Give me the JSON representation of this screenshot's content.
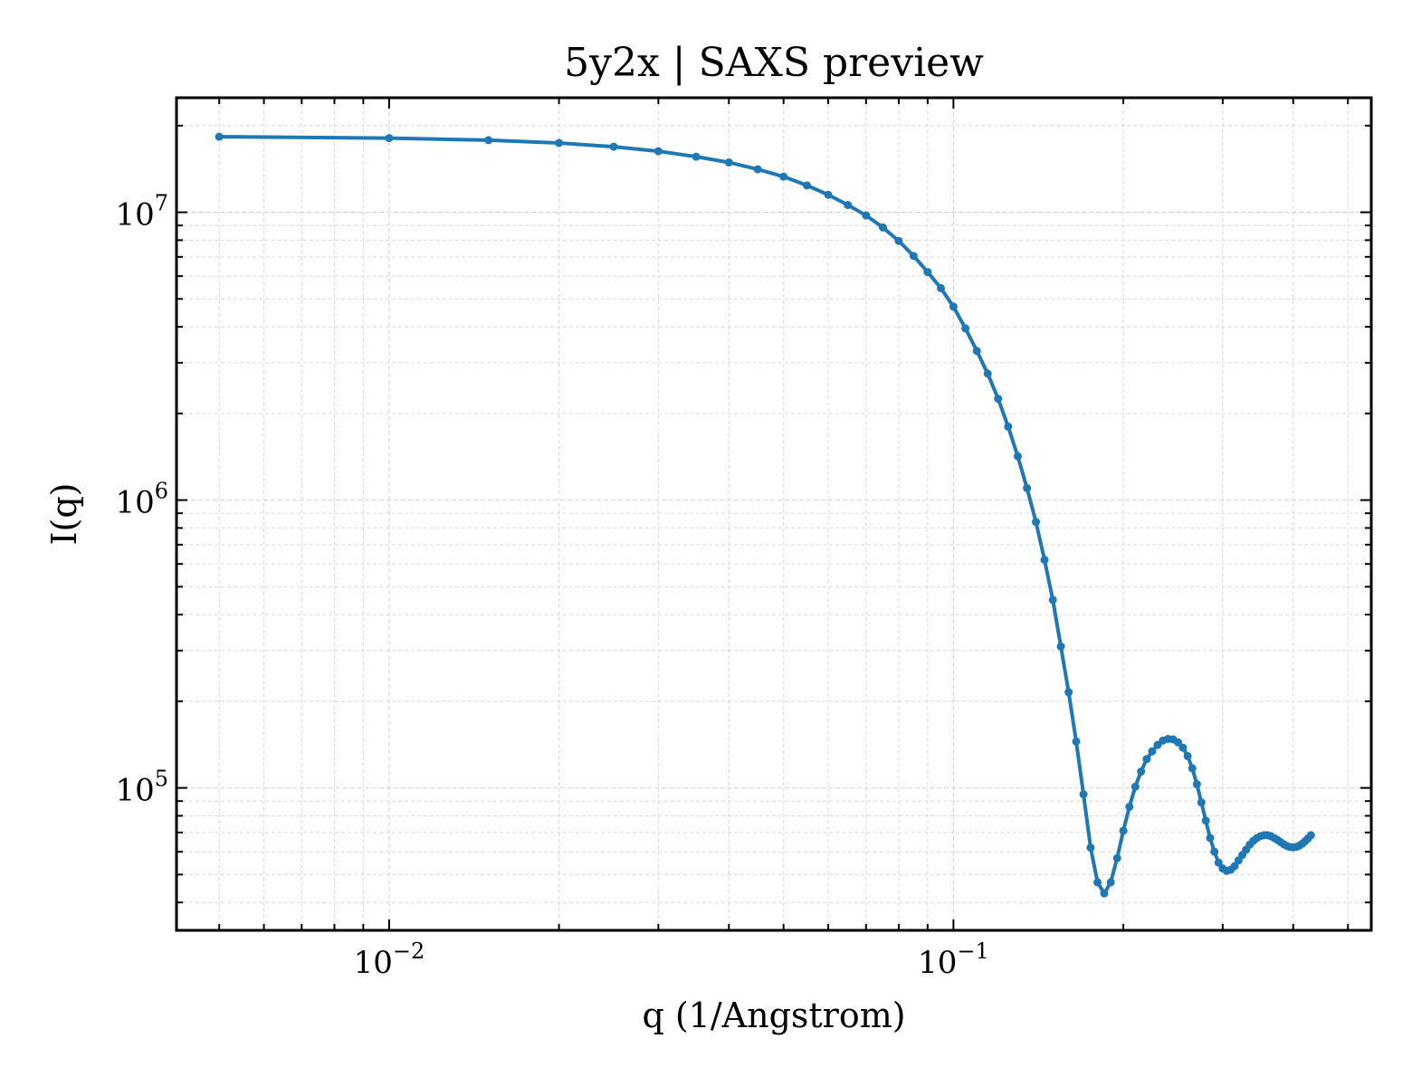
{
  "chart_data": {
    "type": "line",
    "title": "5y2x | SAXS preview",
    "xlabel": "q (1/Angstrom)",
    "ylabel": "I(q)",
    "xscale": "log",
    "yscale": "log",
    "xlim": [
      0.0042,
      0.55
    ],
    "ylim": [
      32000,
      25000000
    ],
    "grid": true,
    "legend": "none",
    "line_color": "#1f77b4",
    "x_ticks": [
      {
        "value": 0.01,
        "base": "10",
        "exp": "−2"
      },
      {
        "value": 0.1,
        "base": "10",
        "exp": "−1"
      }
    ],
    "y_ticks": [
      {
        "value": 100000,
        "base": "10",
        "exp": "5"
      },
      {
        "value": 1000000,
        "base": "10",
        "exp": "6"
      },
      {
        "value": 10000000,
        "base": "10",
        "exp": "7"
      }
    ],
    "series": [
      {
        "marker": "dot",
        "points": [
          [
            0.005,
            18300000
          ],
          [
            0.01,
            18100000
          ],
          [
            0.015,
            17800000
          ],
          [
            0.02,
            17400000
          ],
          [
            0.025,
            16900000
          ],
          [
            0.03,
            16300000
          ],
          [
            0.035,
            15600000
          ],
          [
            0.04,
            14900000
          ],
          [
            0.045,
            14100000
          ],
          [
            0.05,
            13300000
          ],
          [
            0.055,
            12400000
          ],
          [
            0.06,
            11500000
          ],
          [
            0.065,
            10600000
          ],
          [
            0.07,
            9750000
          ],
          [
            0.075,
            8850000
          ],
          [
            0.08,
            7950000
          ],
          [
            0.085,
            7050000
          ],
          [
            0.09,
            6200000
          ],
          [
            0.095,
            5450000
          ],
          [
            0.1,
            4700000
          ],
          [
            0.105,
            3950000
          ],
          [
            0.11,
            3300000
          ],
          [
            0.115,
            2750000
          ],
          [
            0.12,
            2250000
          ],
          [
            0.125,
            1800000
          ],
          [
            0.13,
            1420000
          ],
          [
            0.135,
            1100000
          ],
          [
            0.14,
            840000
          ],
          [
            0.145,
            620000
          ],
          [
            0.15,
            450000
          ],
          [
            0.155,
            310000
          ],
          [
            0.16,
            215000
          ],
          [
            0.165,
            145000
          ],
          [
            0.17,
            95000
          ],
          [
            0.175,
            62000
          ],
          [
            0.18,
            47000
          ],
          [
            0.185,
            43000
          ],
          [
            0.19,
            47000
          ],
          [
            0.195,
            57000
          ],
          [
            0.2,
            71000
          ],
          [
            0.205,
            86000
          ],
          [
            0.21,
            101000
          ],
          [
            0.215,
            114000
          ],
          [
            0.22,
            126000
          ],
          [
            0.225,
            134000
          ],
          [
            0.23,
            141000
          ],
          [
            0.235,
            146000
          ],
          [
            0.24,
            148000
          ],
          [
            0.245,
            147500
          ],
          [
            0.25,
            144000
          ],
          [
            0.255,
            138000
          ],
          [
            0.26,
            129000
          ],
          [
            0.265,
            117000
          ],
          [
            0.27,
            103000
          ],
          [
            0.275,
            89000
          ],
          [
            0.28,
            77000
          ],
          [
            0.285,
            67000
          ],
          [
            0.29,
            60000
          ],
          [
            0.295,
            55000
          ],
          [
            0.3,
            52500
          ],
          [
            0.305,
            51500
          ],
          [
            0.31,
            52000
          ],
          [
            0.315,
            53500
          ],
          [
            0.32,
            56000
          ],
          [
            0.325,
            58500
          ],
          [
            0.33,
            61000
          ],
          [
            0.335,
            63500
          ],
          [
            0.34,
            65500
          ],
          [
            0.345,
            67000
          ],
          [
            0.35,
            68000
          ],
          [
            0.355,
            68500
          ],
          [
            0.36,
            68500
          ],
          [
            0.365,
            68000
          ],
          [
            0.37,
            67000
          ],
          [
            0.375,
            66000
          ],
          [
            0.38,
            64800
          ],
          [
            0.385,
            63700
          ],
          [
            0.39,
            62800
          ],
          [
            0.395,
            62300
          ],
          [
            0.4,
            62200
          ],
          [
            0.405,
            62400
          ],
          [
            0.41,
            63000
          ],
          [
            0.415,
            64000
          ],
          [
            0.42,
            65300
          ],
          [
            0.425,
            66800
          ],
          [
            0.43,
            68500
          ]
        ]
      }
    ]
  }
}
